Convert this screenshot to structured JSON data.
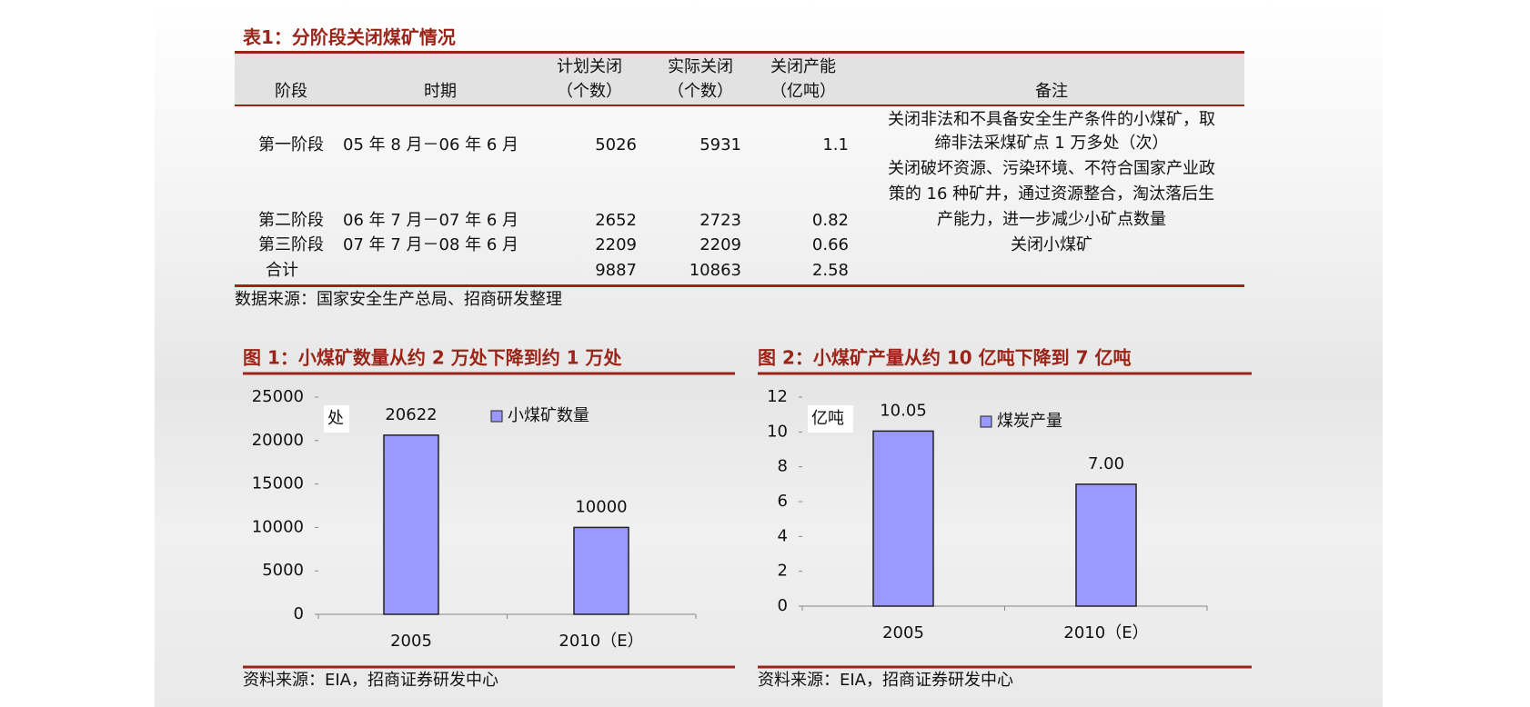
{
  "table": {
    "title": "表1：分阶段关闭煤矿情况",
    "header": [
      [
        "阶段"
      ],
      [
        "时期"
      ],
      [
        "计划关闭",
        "（个数）"
      ],
      [
        "实际关闭",
        "（个数）"
      ],
      [
        "关闭产能",
        "（亿吨）"
      ],
      [
        "备注"
      ]
    ],
    "rows": [
      [
        "第一阶段",
        "05 年 8 月－06 年 6 月",
        "5026",
        "5931",
        "1.1",
        [
          "关闭非法和不具备安全生产条件的小煤矿，取",
          "缔非法采煤矿点 1 万多处（次）"
        ]
      ],
      [
        "第二阶段",
        "06 年 7 月－07 年 6 月",
        "2652",
        "2723",
        "0.82",
        [
          "关闭破坏资源、污染环境、不符合国家产业政",
          "策的 16 种矿井，通过资源整合，淘汰落后生",
          "产能力，进一步减少小矿点数量"
        ]
      ],
      [
        "第三阶段",
        "07 年 7 月－08 年 6 月",
        "2209",
        "2209",
        "0.66",
        [
          "关闭小煤矿"
        ]
      ],
      [
        "合计",
        null,
        "9887",
        "10863",
        "2.58",
        null
      ]
    ],
    "source": "数据来源：国家安全生产总局、招商研发整理"
  },
  "chart_data": [
    {
      "type": "bar",
      "title": "图 1：小煤矿数量从约 2 万处下降到约 1 万处",
      "ylabel": "处",
      "categories": [
        "2005",
        "2010（E）"
      ],
      "series": [
        {
          "name": "小煤矿数量",
          "color": "#9999ff",
          "values": [
            20622,
            10000
          ]
        }
      ],
      "ylim": [
        0,
        25000
      ],
      "yticks": [
        0,
        5000,
        10000,
        15000,
        20000,
        25000
      ],
      "source": "资料来源：EIA，招商证券研发中心"
    },
    {
      "type": "bar",
      "title": "图 2：小煤矿产量从约 10 亿吨下降到 7 亿吨",
      "ylabel": "亿吨",
      "categories": [
        "2005",
        "2010（E）"
      ],
      "series": [
        {
          "name": "煤炭产量",
          "color": "#9999ff",
          "values": [
            10.05,
            7
          ],
          "value_labels": [
            "10.05",
            "7.00"
          ]
        }
      ],
      "ylim": [
        0,
        12
      ],
      "yticks": [
        0,
        2,
        4,
        6,
        8,
        10,
        12
      ],
      "source": "资料来源：EIA，招商证券研发中心"
    }
  ]
}
